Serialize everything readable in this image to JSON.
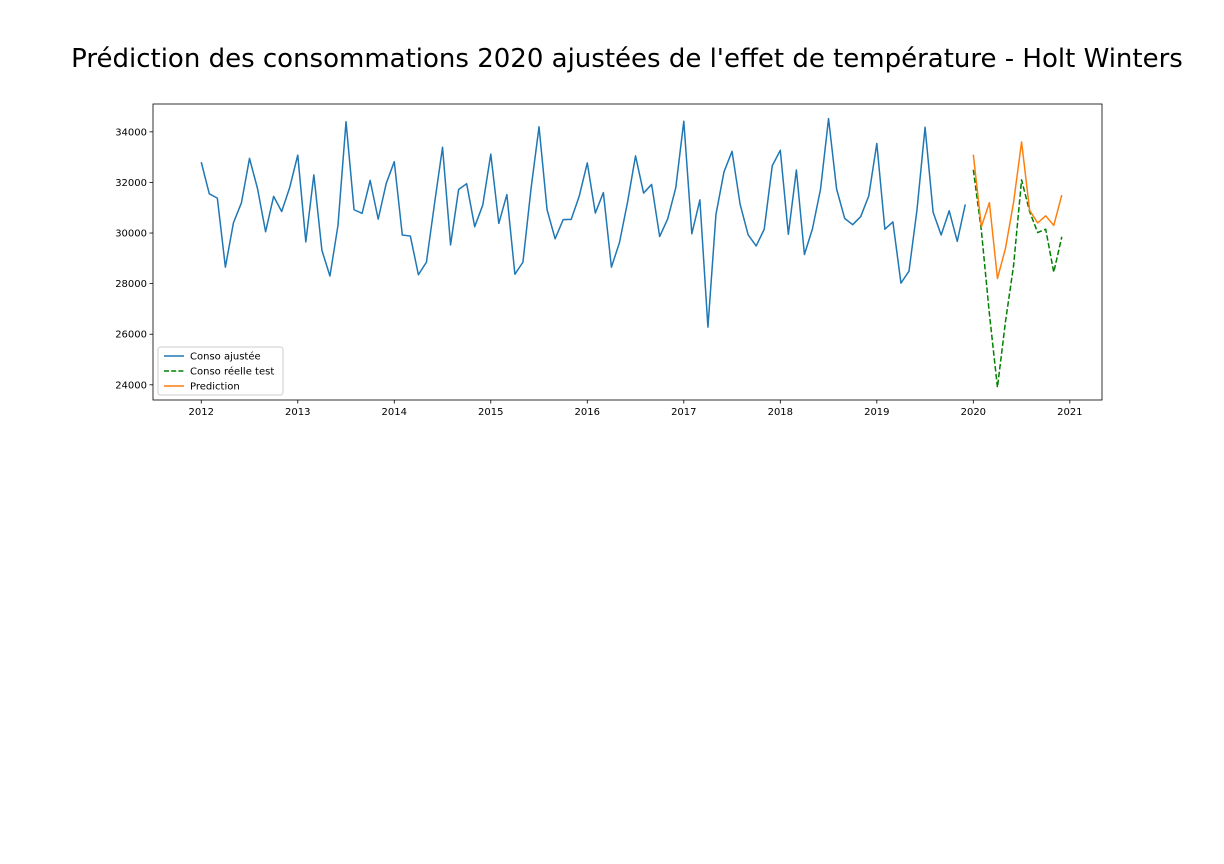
{
  "chart_data": {
    "type": "line",
    "title": "Prédiction des consommations 2020 ajustées de l'effet de température - Holt Winters",
    "xlabel": "",
    "ylabel": "",
    "xlim": [
      "2011-07",
      "2021-05"
    ],
    "ylim": [
      23400,
      35100
    ],
    "grid": false,
    "legend_position": "lower-left",
    "x_ticks": [
      "2012",
      "2013",
      "2014",
      "2015",
      "2016",
      "2017",
      "2018",
      "2019",
      "2020",
      "2021"
    ],
    "y_ticks": [
      24000,
      26000,
      28000,
      30000,
      32000,
      34000
    ],
    "series": [
      {
        "name": "Conso ajustée",
        "color": "#1f77b4",
        "style": "solid",
        "start": "2012-01",
        "values": [
          32800,
          31550,
          31380,
          28650,
          30400,
          31200,
          32950,
          31750,
          30050,
          31450,
          30850,
          31800,
          33080,
          29650,
          32300,
          29320,
          28300,
          30300,
          34400,
          30920,
          30780,
          32080,
          30550,
          31960,
          32820,
          29920,
          29880,
          28350,
          28850,
          31150,
          33390,
          29530,
          31720,
          31950,
          30250,
          31100,
          33120,
          30380,
          31520,
          28370,
          28850,
          31740,
          34200,
          30920,
          29770,
          30530,
          30540,
          31460,
          32770,
          30790,
          31600,
          28650,
          29620,
          31210,
          33050,
          31580,
          31920,
          29860,
          30560,
          31780,
          34420,
          29970,
          31310,
          26280,
          30740,
          32420,
          33230,
          31140,
          29930,
          29490,
          30150,
          32660,
          33270,
          29950,
          32490,
          29150,
          30170,
          31730,
          34520,
          31740,
          30580,
          30330,
          30650,
          31470,
          33540,
          30150,
          30440,
          28020,
          28490,
          30930,
          34180,
          30820,
          29920,
          30880,
          29670,
          31130
        ]
      },
      {
        "name": "Conso réelle test",
        "color": "#008000",
        "style": "dashed",
        "start": "2020-01",
        "values": [
          32500,
          30100,
          26800,
          23900,
          26500,
          28700,
          32100,
          30850,
          30020,
          30150,
          28450,
          29850
        ]
      },
      {
        "name": "Prediction",
        "color": "#ff7f0e",
        "style": "solid",
        "start": "2020-01",
        "values": [
          33100,
          30250,
          31200,
          28200,
          29400,
          31200,
          33600,
          30900,
          30400,
          30680,
          30300,
          31500
        ]
      }
    ]
  }
}
